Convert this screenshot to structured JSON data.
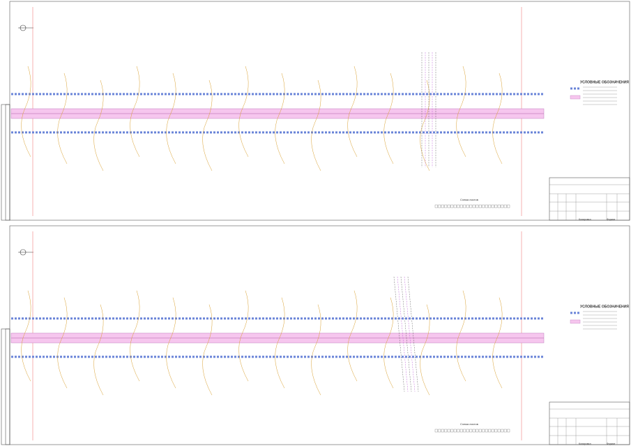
{
  "sheets": [
    {
      "legend_title": "УСЛОВНЫЕ ОБОЗНАЧЕНИЯ",
      "sheet_scheme": "Схема листов",
      "copied": "Копировал",
      "format": "Формат"
    },
    {
      "legend_title": "УСЛОВНЫЕ ОБОЗНАЧЕНИЯ",
      "sheet_scheme": "Схема листов",
      "copied": "Копировал",
      "format": "Формат"
    }
  ]
}
